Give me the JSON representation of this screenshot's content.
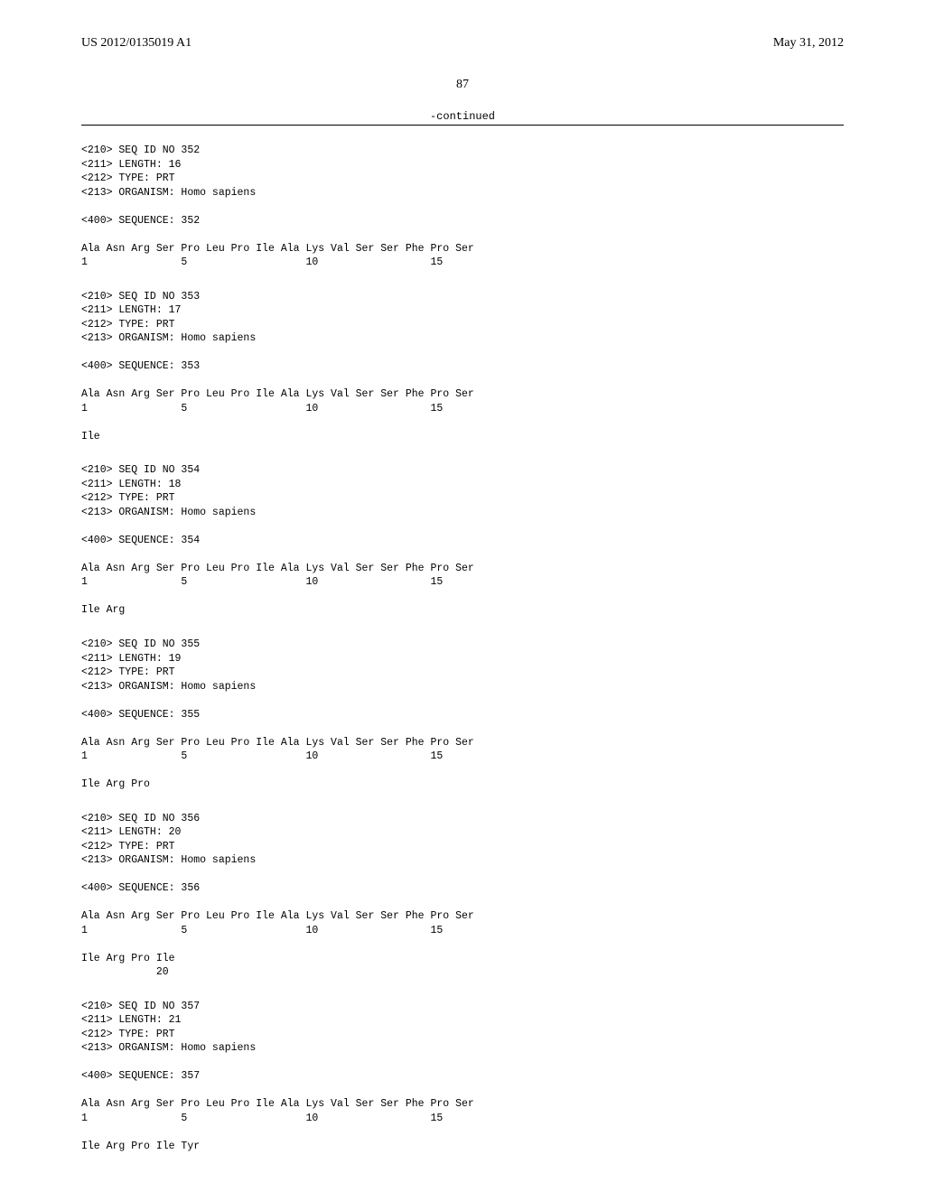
{
  "header": {
    "pub_number": "US 2012/0135019 A1",
    "pub_date": "May 31, 2012"
  },
  "page_number": "87",
  "continued_label": "-continued",
  "sequences": [
    {
      "id_line": "<210> SEQ ID NO 352",
      "length_line": "<211> LENGTH: 16",
      "type_line": "<212> TYPE: PRT",
      "organism_line": "<213> ORGANISM: Homo sapiens",
      "seq_line": "<400> SEQUENCE: 352",
      "residues": "Ala Asn Arg Ser Pro Leu Pro Ile Ala Lys Val Ser Ser Phe Pro Ser",
      "numbers": "1               5                   10                  15",
      "tail": ""
    },
    {
      "id_line": "<210> SEQ ID NO 353",
      "length_line": "<211> LENGTH: 17",
      "type_line": "<212> TYPE: PRT",
      "organism_line": "<213> ORGANISM: Homo sapiens",
      "seq_line": "<400> SEQUENCE: 353",
      "residues": "Ala Asn Arg Ser Pro Leu Pro Ile Ala Lys Val Ser Ser Phe Pro Ser",
      "numbers": "1               5                   10                  15",
      "tail": "Ile"
    },
    {
      "id_line": "<210> SEQ ID NO 354",
      "length_line": "<211> LENGTH: 18",
      "type_line": "<212> TYPE: PRT",
      "organism_line": "<213> ORGANISM: Homo sapiens",
      "seq_line": "<400> SEQUENCE: 354",
      "residues": "Ala Asn Arg Ser Pro Leu Pro Ile Ala Lys Val Ser Ser Phe Pro Ser",
      "numbers": "1               5                   10                  15",
      "tail": "Ile Arg"
    },
    {
      "id_line": "<210> SEQ ID NO 355",
      "length_line": "<211> LENGTH: 19",
      "type_line": "<212> TYPE: PRT",
      "organism_line": "<213> ORGANISM: Homo sapiens",
      "seq_line": "<400> SEQUENCE: 355",
      "residues": "Ala Asn Arg Ser Pro Leu Pro Ile Ala Lys Val Ser Ser Phe Pro Ser",
      "numbers": "1               5                   10                  15",
      "tail": "Ile Arg Pro"
    },
    {
      "id_line": "<210> SEQ ID NO 356",
      "length_line": "<211> LENGTH: 20",
      "type_line": "<212> TYPE: PRT",
      "organism_line": "<213> ORGANISM: Homo sapiens",
      "seq_line": "<400> SEQUENCE: 356",
      "residues": "Ala Asn Arg Ser Pro Leu Pro Ile Ala Lys Val Ser Ser Phe Pro Ser",
      "numbers": "1               5                   10                  15",
      "tail": "Ile Arg Pro Ile\n            20"
    },
    {
      "id_line": "<210> SEQ ID NO 357",
      "length_line": "<211> LENGTH: 21",
      "type_line": "<212> TYPE: PRT",
      "organism_line": "<213> ORGANISM: Homo sapiens",
      "seq_line": "<400> SEQUENCE: 357",
      "residues": "Ala Asn Arg Ser Pro Leu Pro Ile Ala Lys Val Ser Ser Phe Pro Ser",
      "numbers": "1               5                   10                  15",
      "tail": "Ile Arg Pro Ile Tyr"
    }
  ]
}
